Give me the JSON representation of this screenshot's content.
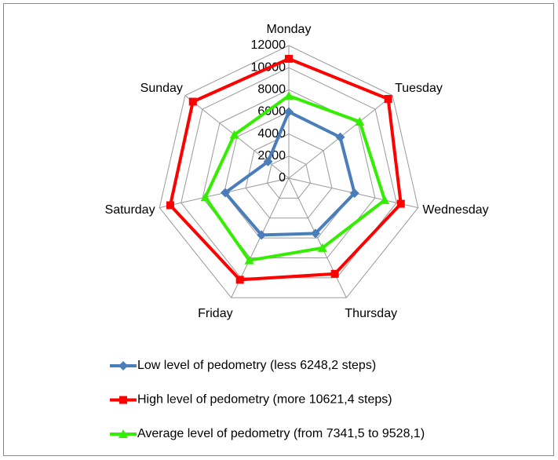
{
  "chart_data": {
    "type": "radar",
    "categories": [
      "Monday",
      "Tuesday",
      "Wednesday",
      "Thursday",
      "Friday",
      "Saturday",
      "Sunday"
    ],
    "series": [
      {
        "name": "Low level of pedometry (less 6248,2 steps)",
        "color": "#4a7ebb",
        "marker": "diamond",
        "values": [
          6000,
          5950,
          6100,
          5550,
          5700,
          5900,
          2400
        ]
      },
      {
        "name": "High level of pedometry (more 10621,4 steps)",
        "color": "#ff0000",
        "marker": "square",
        "values": [
          10800,
          11500,
          10400,
          9600,
          10200,
          11000,
          11100
        ]
      },
      {
        "name": "Average level of pedometry (from 7341,5 to 9528,1)",
        "color": "#33ee00",
        "marker": "triangle",
        "values": [
          7450,
          8200,
          8900,
          7000,
          8250,
          7750,
          6300
        ]
      }
    ],
    "ylim": [
      0,
      12000
    ],
    "yticks": [
      0,
      2000,
      4000,
      6000,
      8000,
      10000,
      12000
    ],
    "grid": true,
    "legend": "bottom"
  }
}
